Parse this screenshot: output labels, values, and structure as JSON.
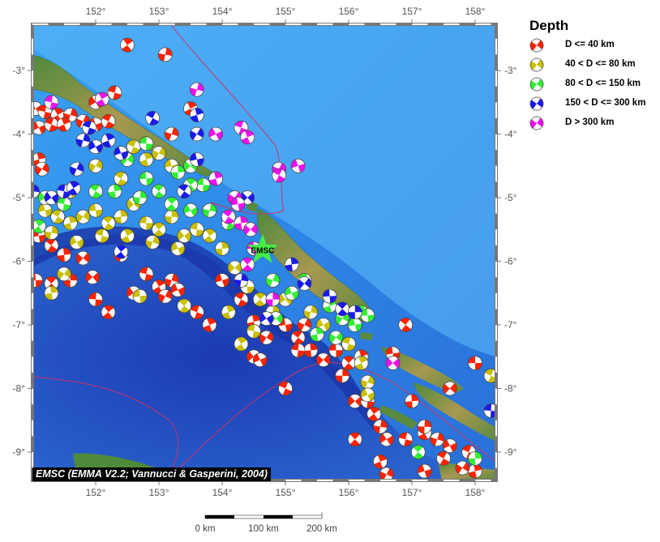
{
  "map": {
    "lon_range": [
      151,
      158.3
    ],
    "lat_range": [
      -9.45,
      -2.27
    ],
    "lon_ticks": [
      "152°",
      "153°",
      "154°",
      "155°",
      "156°",
      "157°",
      "158°"
    ],
    "lat_ticks": [
      "-3°",
      "-4°",
      "-5°",
      "-6°",
      "-7°",
      "-8°",
      "-9°"
    ],
    "attribution": "EMSC (EMMA V2.2; Vannucci & Gasperini, 2004)",
    "marker": {
      "label": "EMSC",
      "lon": 154.64,
      "lat": -5.82,
      "color": "#44ee44"
    },
    "colors": {
      "ocean_shallow": "#3a9cf0",
      "ocean_deep": "#1a3fb8",
      "land_low": "#4a7a3a",
      "land_high": "#c8a860",
      "plate_boundary": "#cc3366"
    }
  },
  "legend": {
    "title": "Depth",
    "items": [
      {
        "label": "D <= 40 km",
        "color": "#ff2200"
      },
      {
        "label": "40 < D <= 80 km",
        "color": "#c8c000"
      },
      {
        "label": "80 < D <= 150 km",
        "color": "#33ee33"
      },
      {
        "label": "150 < D <= 300 km",
        "color": "#1a1aee"
      },
      {
        "label": "D > 300 km",
        "color": "#ee11ee"
      }
    ]
  },
  "scale_bar": {
    "labels": [
      "0 km",
      "100 km",
      "200 km"
    ]
  },
  "events": [
    [
      151.05,
      -3.6,
      0
    ],
    [
      151.2,
      -3.65,
      0
    ],
    [
      151.4,
      -3.7,
      0
    ],
    [
      151.6,
      -3.7,
      0
    ],
    [
      151.1,
      -3.9,
      0
    ],
    [
      151.3,
      -3.85,
      0
    ],
    [
      151.5,
      -3.85,
      0
    ],
    [
      151.8,
      -3.8,
      0
    ],
    [
      152.0,
      -3.85,
      0
    ],
    [
      152.2,
      -3.8,
      0
    ],
    [
      151.1,
      -4.4,
      0
    ],
    [
      151.15,
      -4.55,
      0
    ],
    [
      151.1,
      -5.6,
      0
    ],
    [
      151.3,
      -5.75,
      0
    ],
    [
      151.5,
      -5.9,
      0
    ],
    [
      151.8,
      -5.95,
      0
    ],
    [
      151.05,
      -6.3,
      0
    ],
    [
      151.3,
      -6.35,
      0
    ],
    [
      151.6,
      -6.3,
      0
    ],
    [
      151.95,
      -6.25,
      0
    ],
    [
      152.0,
      -6.6,
      0
    ],
    [
      152.2,
      -6.8,
      0
    ],
    [
      152.4,
      -5.9,
      0
    ],
    [
      152.6,
      -6.5,
      0
    ],
    [
      152.8,
      -6.2,
      0
    ],
    [
      153.0,
      -6.4,
      0
    ],
    [
      153.2,
      -6.3,
      0
    ],
    [
      153.3,
      -6.45,
      0
    ],
    [
      153.6,
      -6.8,
      0
    ],
    [
      153.8,
      -7.0,
      0
    ],
    [
      153.1,
      -6.55,
      0
    ],
    [
      154.0,
      -6.3,
      0
    ],
    [
      154.3,
      -6.6,
      0
    ],
    [
      154.5,
      -6.95,
      0
    ],
    [
      154.7,
      -7.2,
      0
    ],
    [
      155.0,
      -7.0,
      0
    ],
    [
      155.2,
      -7.2,
      0
    ],
    [
      155.4,
      -7.4,
      0
    ],
    [
      155.6,
      -7.55,
      0
    ],
    [
      155.8,
      -7.4,
      0
    ],
    [
      156.0,
      -7.6,
      0
    ],
    [
      155.9,
      -7.8,
      0
    ],
    [
      156.1,
      -8.2,
      0
    ],
    [
      156.3,
      -8.2,
      0
    ],
    [
      156.4,
      -8.4,
      0
    ],
    [
      156.5,
      -8.6,
      0
    ],
    [
      156.6,
      -8.8,
      0
    ],
    [
      156.9,
      -8.8,
      0
    ],
    [
      157.2,
      -8.7,
      0
    ],
    [
      157.4,
      -8.8,
      0
    ],
    [
      157.6,
      -8.9,
      0
    ],
    [
      157.9,
      -9.0,
      0
    ],
    [
      156.5,
      -9.15,
      0
    ],
    [
      156.6,
      -9.35,
      0
    ],
    [
      157.2,
      -9.3,
      0
    ],
    [
      157.5,
      -9.1,
      0
    ],
    [
      158.0,
      -9.3,
      0
    ],
    [
      157.8,
      -9.25,
      0
    ],
    [
      156.7,
      -7.45,
      0
    ],
    [
      156.9,
      -7.0,
      0
    ],
    [
      157.0,
      -8.2,
      0
    ],
    [
      157.6,
      -8.0,
      0
    ],
    [
      158.0,
      -7.6,
      0
    ],
    [
      156.1,
      -8.8,
      0
    ],
    [
      157.2,
      -8.6,
      0
    ],
    [
      154.5,
      -7.5,
      0
    ],
    [
      155.2,
      -7.4,
      0
    ],
    [
      152.5,
      -2.6,
      0
    ],
    [
      153.1,
      -2.75,
      0
    ],
    [
      152.0,
      -3.5,
      0
    ],
    [
      152.3,
      -3.35,
      0
    ],
    [
      153.5,
      -3.6,
      0
    ],
    [
      153.2,
      -4.0,
      0
    ],
    [
      154.6,
      -7.55,
      0
    ],
    [
      155.0,
      -8.0,
      0
    ],
    [
      156.2,
      -7.5,
      0
    ],
    [
      155.3,
      -7.0,
      0
    ],
    [
      151.2,
      -5.2,
      1
    ],
    [
      151.4,
      -5.3,
      1
    ],
    [
      151.6,
      -5.4,
      1
    ],
    [
      151.8,
      -5.3,
      1
    ],
    [
      152.0,
      -5.2,
      1
    ],
    [
      152.2,
      -5.4,
      1
    ],
    [
      152.4,
      -5.3,
      1
    ],
    [
      152.6,
      -5.1,
      1
    ],
    [
      152.8,
      -5.4,
      1
    ],
    [
      153.0,
      -5.5,
      1
    ],
    [
      153.2,
      -5.3,
      1
    ],
    [
      153.4,
      -5.6,
      1
    ],
    [
      153.6,
      -5.5,
      1
    ],
    [
      153.8,
      -5.6,
      1
    ],
    [
      151.3,
      -5.55,
      1
    ],
    [
      151.7,
      -5.7,
      1
    ],
    [
      152.1,
      -5.6,
      1
    ],
    [
      152.5,
      -5.6,
      1
    ],
    [
      152.9,
      -5.7,
      1
    ],
    [
      153.3,
      -5.8,
      1
    ],
    [
      152.6,
      -4.2,
      1
    ],
    [
      152.8,
      -4.4,
      1
    ],
    [
      153.0,
      -4.3,
      1
    ],
    [
      153.2,
      -4.5,
      1
    ],
    [
      152.4,
      -4.7,
      1
    ],
    [
      151.3,
      -6.5,
      1
    ],
    [
      151.5,
      -6.2,
      1
    ],
    [
      152.7,
      -6.55,
      1
    ],
    [
      153.4,
      -6.7,
      1
    ],
    [
      154.0,
      -5.8,
      1
    ],
    [
      154.2,
      -6.1,
      1
    ],
    [
      154.4,
      -6.4,
      1
    ],
    [
      154.6,
      -6.6,
      1
    ],
    [
      154.8,
      -6.8,
      1
    ],
    [
      155.0,
      -6.6,
      1
    ],
    [
      154.5,
      -7.1,
      1
    ],
    [
      154.3,
      -7.3,
      1
    ],
    [
      155.4,
      -6.8,
      1
    ],
    [
      155.6,
      -7.0,
      1
    ],
    [
      156.0,
      -7.3,
      1
    ],
    [
      156.2,
      -7.6,
      1
    ],
    [
      156.3,
      -7.9,
      1
    ],
    [
      156.3,
      -8.1,
      1
    ],
    [
      158.25,
      -7.8,
      1
    ],
    [
      154.1,
      -6.8,
      1
    ],
    [
      152.0,
      -4.5,
      1
    ],
    [
      151.6,
      -4.9,
      1
    ],
    [
      152.0,
      -4.9,
      2
    ],
    [
      152.3,
      -4.9,
      2
    ],
    [
      152.5,
      -4.4,
      2
    ],
    [
      152.8,
      -4.7,
      2
    ],
    [
      153.0,
      -4.9,
      2
    ],
    [
      153.3,
      -4.6,
      2
    ],
    [
      153.5,
      -4.5,
      2
    ],
    [
      153.7,
      -4.8,
      2
    ],
    [
      153.2,
      -5.1,
      2
    ],
    [
      152.7,
      -5.0,
      2
    ],
    [
      151.2,
      -5.0,
      2
    ],
    [
      151.5,
      -5.1,
      2
    ],
    [
      151.1,
      -5.45,
      2
    ],
    [
      153.8,
      -5.2,
      2
    ],
    [
      153.5,
      -5.2,
      2
    ],
    [
      154.1,
      -5.4,
      2
    ],
    [
      154.5,
      -5.8,
      2
    ],
    [
      154.8,
      -6.3,
      2
    ],
    [
      155.1,
      -6.5,
      2
    ],
    [
      155.3,
      -6.3,
      2
    ],
    [
      155.7,
      -6.7,
      2
    ],
    [
      155.9,
      -6.9,
      2
    ],
    [
      156.1,
      -7.0,
      2
    ],
    [
      156.2,
      -6.8,
      2
    ],
    [
      155.5,
      -7.15,
      2
    ],
    [
      155.8,
      -7.2,
      2
    ],
    [
      156.3,
      -6.85,
      2
    ],
    [
      157.1,
      -9.0,
      2
    ],
    [
      158.0,
      -9.1,
      2
    ],
    [
      154.85,
      -6.9,
      2
    ],
    [
      152.8,
      -4.15,
      2
    ],
    [
      153.5,
      -4.8,
      2
    ],
    [
      151.0,
      -4.9,
      3
    ],
    [
      151.3,
      -5.0,
      3
    ],
    [
      151.5,
      -4.9,
      3
    ],
    [
      151.65,
      -4.85,
      3
    ],
    [
      151.8,
      -4.1,
      3
    ],
    [
      152.0,
      -4.2,
      3
    ],
    [
      151.9,
      -3.9,
      3
    ],
    [
      152.2,
      -4.1,
      3
    ],
    [
      151.7,
      -4.55,
      3
    ],
    [
      152.4,
      -4.3,
      3
    ],
    [
      152.9,
      -3.75,
      3
    ],
    [
      153.6,
      -3.7,
      3
    ],
    [
      153.6,
      -4.0,
      3
    ],
    [
      153.6,
      -4.4,
      3
    ],
    [
      153.4,
      -4.9,
      3
    ],
    [
      155.1,
      -6.05,
      3
    ],
    [
      155.3,
      -6.35,
      3
    ],
    [
      155.7,
      -6.55,
      3
    ],
    [
      155.9,
      -6.75,
      3
    ],
    [
      156.1,
      -6.8,
      3
    ],
    [
      154.4,
      -5.0,
      3
    ],
    [
      158.25,
      -8.35,
      3
    ],
    [
      152.4,
      -5.85,
      3
    ],
    [
      154.3,
      -6.3,
      3
    ],
    [
      154.7,
      -6.9,
      3
    ],
    [
      151.3,
      -3.5,
      4
    ],
    [
      152.1,
      -3.45,
      4
    ],
    [
      153.6,
      -3.3,
      4
    ],
    [
      153.9,
      -4.0,
      4
    ],
    [
      154.3,
      -3.9,
      4
    ],
    [
      154.4,
      -4.05,
      4
    ],
    [
      154.9,
      -4.55,
      4
    ],
    [
      155.2,
      -4.5,
      4
    ],
    [
      154.9,
      -4.65,
      4
    ],
    [
      153.9,
      -4.7,
      4
    ],
    [
      154.2,
      -5.0,
      4
    ],
    [
      154.25,
      -5.1,
      4
    ],
    [
      154.1,
      -5.3,
      4
    ],
    [
      154.3,
      -5.4,
      4
    ],
    [
      154.45,
      -5.5,
      4
    ],
    [
      154.5,
      -5.8,
      4
    ],
    [
      154.4,
      -6.05,
      4
    ],
    [
      154.8,
      -6.6,
      4
    ],
    [
      156.7,
      -7.6,
      4
    ]
  ]
}
